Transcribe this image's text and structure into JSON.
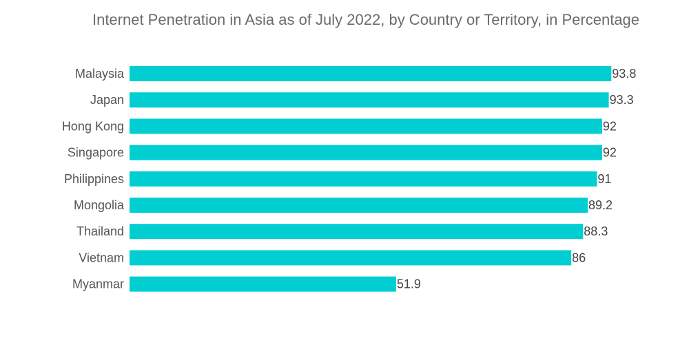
{
  "chart_data": {
    "type": "bar",
    "orientation": "horizontal",
    "title": "Internet Penetration in Asia as of July 2022, by Country or Territory, in Percentage",
    "categories": [
      "Malaysia",
      "Japan",
      "Hong Kong",
      "Singapore",
      "Philippines",
      "Mongolia",
      "Thailand",
      "Vietnam",
      "Myanmar"
    ],
    "values": [
      93.8,
      93.3,
      92,
      92,
      91,
      89.2,
      88.3,
      86,
      51.9
    ],
    "value_labels": [
      "93.8",
      "93.3",
      "92",
      "92",
      "91",
      "89.2",
      "88.3",
      "86",
      "51.9"
    ],
    "xlabel": "",
    "ylabel": "",
    "xlim": [
      0,
      100
    ],
    "grid": false,
    "legend": "none",
    "bar_color": "#00CED1"
  }
}
